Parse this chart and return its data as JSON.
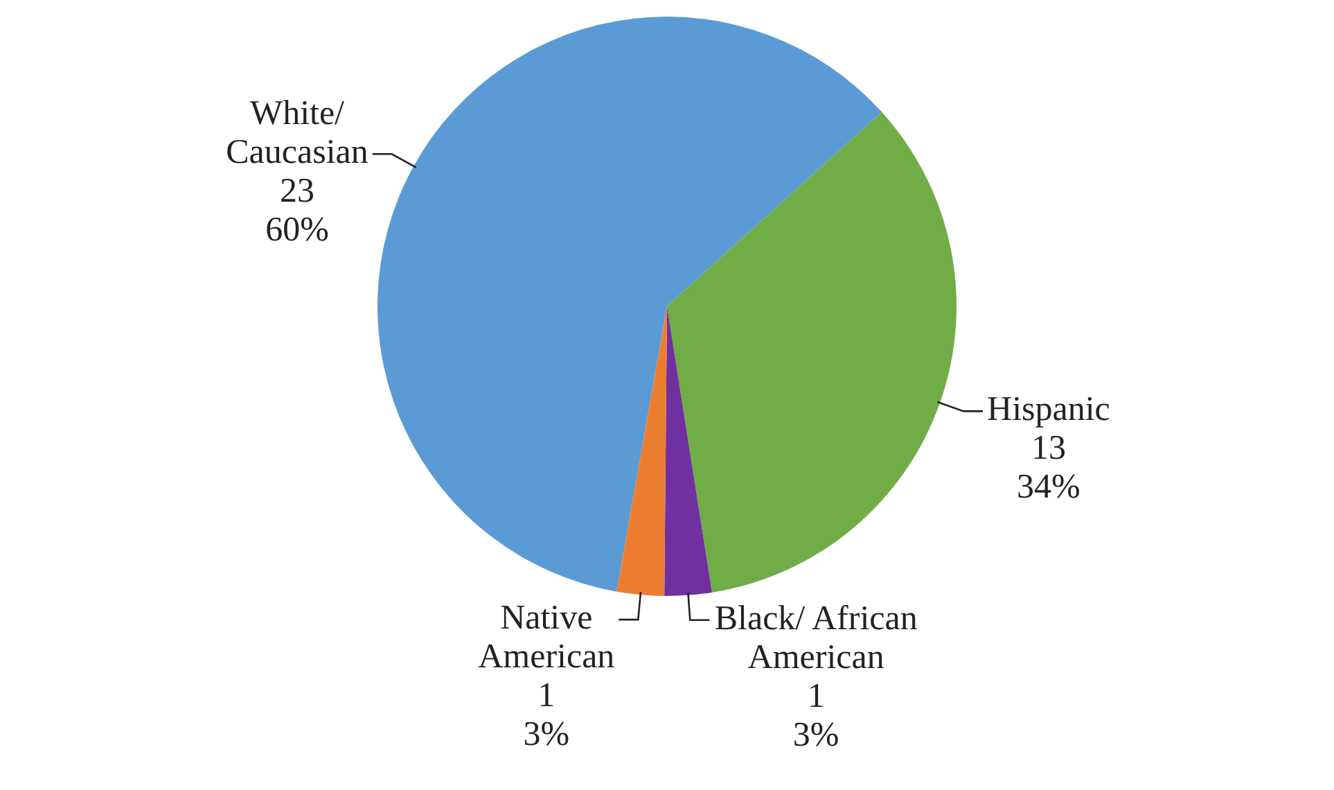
{
  "chart_data": {
    "type": "pie",
    "categories": [
      "White/ Caucasian",
      "Hispanic",
      "Black/ African American",
      "Native American"
    ],
    "values": [
      23,
      13,
      1,
      1
    ],
    "colors": [
      "#5b9bd5",
      "#70ad47",
      "#7030a0",
      "#ed7d31"
    ],
    "value_labels": [
      "23\n60%",
      "13\n34%",
      "1\n3%",
      "1\n3%"
    ]
  }
}
